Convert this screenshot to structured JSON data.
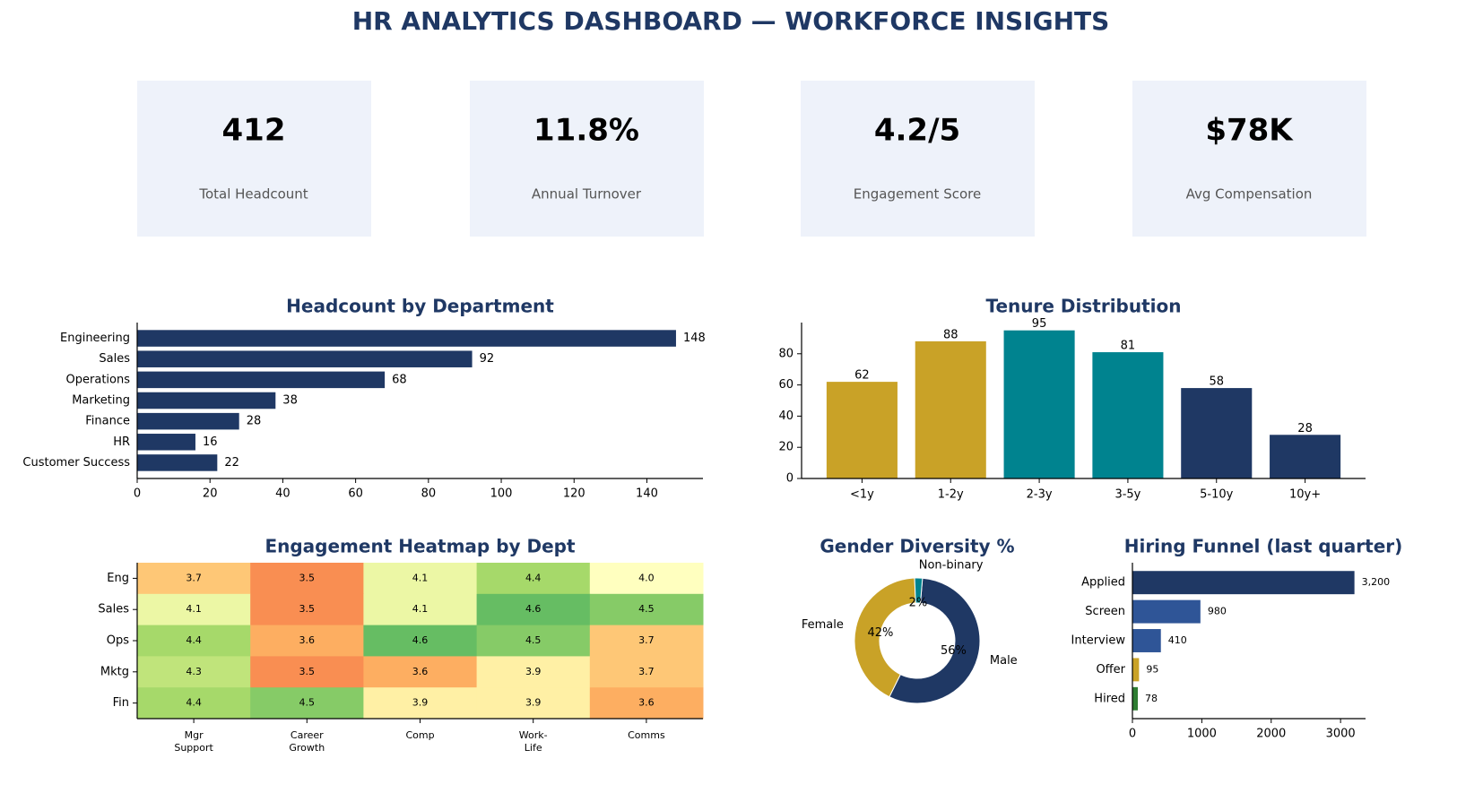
{
  "title": "HR ANALYTICS DASHBOARD — WORKFORCE INSIGHTS",
  "kpis": [
    {
      "value": "412",
      "label": "Total Headcount",
      "color": "#1f3864"
    },
    {
      "value": "11.8%",
      "label": "Annual Turnover",
      "color": "#c9a227"
    },
    {
      "value": "4.2/5",
      "label": "Engagement Score",
      "color": "#2e7d32"
    },
    {
      "value": "$78K",
      "label": "Avg Compensation",
      "color": "#1f3864"
    }
  ],
  "chart_data": [
    {
      "type": "barh",
      "title": "Headcount by Department",
      "categories": [
        "Engineering",
        "Sales",
        "Operations",
        "Marketing",
        "Finance",
        "HR",
        "Customer Success"
      ],
      "values": [
        148,
        92,
        68,
        38,
        28,
        16,
        22
      ],
      "color": "#1f3864",
      "xlim": [
        0,
        155.4
      ],
      "xticks": [
        0,
        20,
        40,
        60,
        80,
        100,
        120,
        140
      ]
    },
    {
      "type": "bar",
      "title": "Tenure Distribution",
      "categories": [
        "<1y",
        "1-2y",
        "2-3y",
        "3-5y",
        "5-10y",
        "10y+"
      ],
      "values": [
        62,
        88,
        95,
        81,
        58,
        28
      ],
      "colors": [
        "#c9a227",
        "#c9a227",
        "#00838f",
        "#00838f",
        "#1f3864",
        "#1f3864"
      ],
      "ylim": [
        0,
        100
      ],
      "yticks": [
        0,
        20,
        40,
        60,
        80
      ]
    },
    {
      "type": "heatmap",
      "title": "Engagement Heatmap by Dept",
      "rows": [
        "Eng",
        "Sales",
        "Ops",
        "Mktg",
        "Fin"
      ],
      "columns": [
        [
          "Mgr",
          "Support"
        ],
        [
          "Career",
          "Growth"
        ],
        [
          "Comp"
        ],
        [
          "Work-",
          "Life"
        ],
        [
          "Comms"
        ]
      ],
      "values": [
        [
          3.7,
          3.5,
          4.1,
          4.4,
          4.0
        ],
        [
          4.1,
          3.5,
          4.1,
          4.6,
          4.5
        ],
        [
          4.4,
          3.6,
          4.6,
          4.5,
          3.7
        ],
        [
          4.3,
          3.5,
          3.6,
          3.9,
          3.7
        ],
        [
          4.4,
          4.5,
          3.9,
          3.9,
          3.6
        ]
      ],
      "value_labels": [
        [
          "3.7",
          "3.5",
          "4.1",
          "4.4",
          "4.0"
        ],
        [
          "4.1",
          "3.5",
          "4.1",
          "4.6",
          "4.5"
        ],
        [
          "4.4",
          "3.6",
          "4.6",
          "4.5",
          "3.7"
        ],
        [
          "4.3",
          "3.5",
          "3.6",
          "3.9",
          "3.7"
        ],
        [
          "4.4",
          "4.5",
          "3.9",
          "3.9",
          "3.6"
        ]
      ],
      "colormap": "RdYlGn",
      "clim": [
        3,
        5
      ]
    },
    {
      "type": "pie",
      "title": "Gender Diversity %",
      "categories": [
        "Male",
        "Female",
        "Non-binary"
      ],
      "values": [
        56,
        42,
        2
      ],
      "value_labels": [
        "56%",
        "42%",
        "2%"
      ],
      "colors": [
        "#1f3864",
        "#c9a227",
        "#00838f"
      ],
      "donut": true
    },
    {
      "type": "barh",
      "title": "Hiring Funnel (last quarter)",
      "categories": [
        "Applied",
        "Screen",
        "Interview",
        "Offer",
        "Hired"
      ],
      "values": [
        3200,
        980,
        410,
        95,
        78
      ],
      "value_labels": [
        "3,200",
        "980",
        "410",
        "95",
        "78"
      ],
      "colors": [
        "#1f3864",
        "#2f5597",
        "#2f5597",
        "#c9a227",
        "#2e7d32"
      ],
      "xlim": [
        0,
        3360
      ],
      "xticks": [
        0,
        1000,
        2000,
        3000
      ]
    }
  ]
}
